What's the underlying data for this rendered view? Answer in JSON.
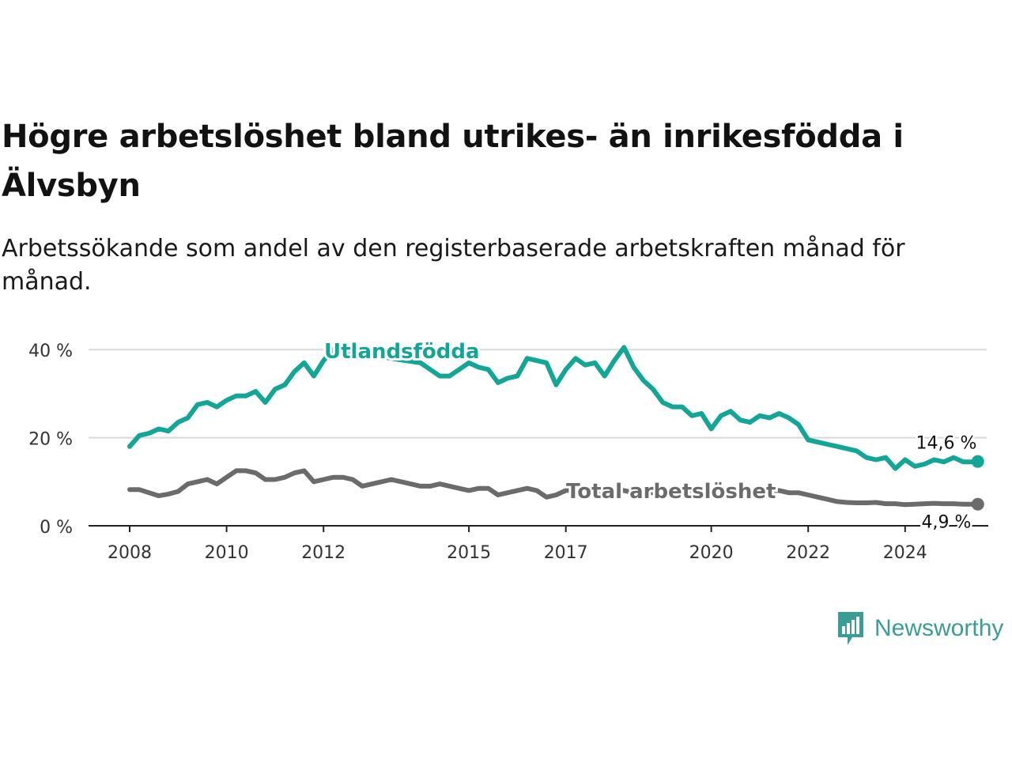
{
  "title": "Högre arbetslöshet bland utrikes- än inrikesfödda i Älvsbyn",
  "subtitle": "Arbetssökande som andel av den registerbaserade arbetskraften månad för månad.",
  "brand": {
    "name": "Newsworthy",
    "icon": "bar-chart-speech-bubble-icon",
    "color": "#3a9c94"
  },
  "chart_data": {
    "type": "line",
    "title": "Högre arbetslöshet bland utrikes- än inrikesfödda i Älvsbyn",
    "subtitle": "Arbetssökande som andel av den registerbaserade arbetskraften månad för månad.",
    "xlabel": "",
    "ylabel": "",
    "xlim": [
      2008,
      2025
    ],
    "ylim": [
      0,
      40
    ],
    "y_ticks": [
      0,
      20,
      40
    ],
    "y_tick_labels": [
      "0 %",
      "20 %",
      "40 %"
    ],
    "x_ticks": [
      2008,
      2010,
      2012,
      2015,
      2017,
      2020,
      2022,
      2024
    ],
    "x_tick_labels": [
      "2008",
      "2010",
      "2012",
      "2015",
      "2017",
      "2020",
      "2022",
      "2024"
    ],
    "grid": true,
    "series": [
      {
        "name": "Utlandsfödda",
        "color": "#13a596",
        "end_label": "14,6 %",
        "points": [
          [
            2008.0,
            18
          ],
          [
            2008.2,
            20.5
          ],
          [
            2008.4,
            21
          ],
          [
            2008.6,
            22
          ],
          [
            2008.8,
            21.5
          ],
          [
            2009.0,
            23.5
          ],
          [
            2009.2,
            24.5
          ],
          [
            2009.4,
            27.5
          ],
          [
            2009.6,
            28
          ],
          [
            2009.8,
            27
          ],
          [
            2010.0,
            28.5
          ],
          [
            2010.2,
            29.5
          ],
          [
            2010.4,
            29.5
          ],
          [
            2010.6,
            30.5
          ],
          [
            2010.8,
            28
          ],
          [
            2011.0,
            31
          ],
          [
            2011.2,
            32
          ],
          [
            2011.4,
            35
          ],
          [
            2011.6,
            37
          ],
          [
            2011.8,
            34
          ],
          [
            2012.0,
            37.5
          ],
          [
            2012.2,
            40
          ],
          [
            2014.0,
            37
          ],
          [
            2014.2,
            35.5
          ],
          [
            2014.4,
            34
          ],
          [
            2014.6,
            34
          ],
          [
            2014.8,
            35.5
          ],
          [
            2015.0,
            37
          ],
          [
            2015.2,
            36
          ],
          [
            2015.4,
            35.5
          ],
          [
            2015.6,
            32.5
          ],
          [
            2015.8,
            33.5
          ],
          [
            2016.0,
            34
          ],
          [
            2016.2,
            38
          ],
          [
            2016.4,
            37.5
          ],
          [
            2016.6,
            37
          ],
          [
            2016.8,
            32
          ],
          [
            2017.0,
            35.5
          ],
          [
            2017.2,
            38
          ],
          [
            2017.4,
            36.5
          ],
          [
            2017.6,
            37
          ],
          [
            2017.8,
            34
          ],
          [
            2018.0,
            37.5
          ],
          [
            2018.2,
            40.5
          ],
          [
            2018.4,
            36
          ],
          [
            2018.6,
            33
          ],
          [
            2018.8,
            31
          ],
          [
            2019.0,
            28
          ],
          [
            2019.2,
            27
          ],
          [
            2019.4,
            27
          ],
          [
            2019.6,
            25
          ],
          [
            2019.8,
            25.5
          ],
          [
            2020.0,
            22
          ],
          [
            2020.2,
            25
          ],
          [
            2020.4,
            26
          ],
          [
            2020.6,
            24
          ],
          [
            2020.8,
            23.5
          ],
          [
            2021.0,
            25
          ],
          [
            2021.2,
            24.5
          ],
          [
            2021.4,
            25.5
          ],
          [
            2021.6,
            24.5
          ],
          [
            2021.8,
            23
          ],
          [
            2022.0,
            19.5
          ],
          [
            2022.2,
            19
          ],
          [
            2022.4,
            18.5
          ],
          [
            2022.6,
            18
          ],
          [
            2022.8,
            17.5
          ],
          [
            2023.0,
            17
          ],
          [
            2023.2,
            15.5
          ],
          [
            2023.4,
            15
          ],
          [
            2023.6,
            15.5
          ],
          [
            2023.8,
            13
          ],
          [
            2024.0,
            15
          ],
          [
            2024.2,
            13.5
          ],
          [
            2024.4,
            14
          ],
          [
            2024.6,
            15
          ],
          [
            2024.8,
            14.5
          ],
          [
            2025.0,
            15.5
          ],
          [
            2025.2,
            14.5
          ],
          [
            2025.4,
            14.5
          ],
          [
            2025.5,
            14.6
          ]
        ]
      },
      {
        "name": "Total arbetslöshet",
        "color": "#6b6b6b",
        "end_label": "4,9 %",
        "points": [
          [
            2008.0,
            8.2
          ],
          [
            2008.2,
            8.2
          ],
          [
            2008.4,
            7.5
          ],
          [
            2008.6,
            6.8
          ],
          [
            2008.8,
            7.2
          ],
          [
            2009.0,
            7.8
          ],
          [
            2009.2,
            9.5
          ],
          [
            2009.4,
            10
          ],
          [
            2009.6,
            10.5
          ],
          [
            2009.8,
            9.5
          ],
          [
            2010.0,
            11
          ],
          [
            2010.2,
            12.5
          ],
          [
            2010.4,
            12.5
          ],
          [
            2010.6,
            12
          ],
          [
            2010.8,
            10.5
          ],
          [
            2011.0,
            10.5
          ],
          [
            2011.2,
            11
          ],
          [
            2011.4,
            12
          ],
          [
            2011.6,
            12.5
          ],
          [
            2011.8,
            10
          ],
          [
            2012.0,
            10.5
          ],
          [
            2012.2,
            11
          ],
          [
            2012.4,
            11
          ],
          [
            2012.6,
            10.5
          ],
          [
            2012.8,
            9
          ],
          [
            2013.0,
            9.5
          ],
          [
            2013.2,
            10
          ],
          [
            2013.4,
            10.5
          ],
          [
            2013.6,
            10
          ],
          [
            2013.8,
            9.5
          ],
          [
            2014.0,
            9
          ],
          [
            2014.2,
            9
          ],
          [
            2014.4,
            9.5
          ],
          [
            2014.6,
            9
          ],
          [
            2014.8,
            8.5
          ],
          [
            2015.0,
            8
          ],
          [
            2015.2,
            8.5
          ],
          [
            2015.4,
            8.5
          ],
          [
            2015.6,
            7
          ],
          [
            2015.8,
            7.5
          ],
          [
            2016.0,
            8
          ],
          [
            2016.2,
            8.5
          ],
          [
            2016.4,
            8
          ],
          [
            2016.6,
            6.5
          ],
          [
            2016.8,
            7
          ],
          [
            2017.0,
            8
          ],
          [
            2017.2,
            8
          ],
          [
            2017.4,
            7.5
          ],
          [
            2017.6,
            7.5
          ],
          [
            2017.8,
            7.5
          ],
          [
            2018.0,
            8
          ],
          [
            2018.2,
            8
          ],
          [
            2018.4,
            7.5
          ],
          [
            2018.6,
            7.5
          ],
          [
            2018.8,
            7.5
          ],
          [
            2019.0,
            7.5
          ],
          [
            2019.2,
            7.5
          ],
          [
            2019.4,
            7.5
          ],
          [
            2019.6,
            7.5
          ],
          [
            2019.8,
            7.5
          ],
          [
            2020.0,
            7.5
          ],
          [
            2020.2,
            8
          ],
          [
            2020.4,
            8
          ],
          [
            2020.6,
            8
          ],
          [
            2020.8,
            8
          ],
          [
            2021.0,
            8
          ],
          [
            2021.2,
            8
          ],
          [
            2021.4,
            8
          ],
          [
            2021.6,
            7.5
          ],
          [
            2021.8,
            7.5
          ],
          [
            2022.0,
            7
          ],
          [
            2022.2,
            6.5
          ],
          [
            2022.4,
            6
          ],
          [
            2022.6,
            5.5
          ],
          [
            2022.8,
            5.3
          ],
          [
            2023.0,
            5.2
          ],
          [
            2023.2,
            5.2
          ],
          [
            2023.4,
            5.3
          ],
          [
            2023.6,
            5
          ],
          [
            2023.8,
            5
          ],
          [
            2024.0,
            4.8
          ],
          [
            2024.2,
            4.9
          ],
          [
            2024.4,
            5
          ],
          [
            2024.6,
            5.1
          ],
          [
            2024.8,
            5
          ],
          [
            2025.0,
            5
          ],
          [
            2025.2,
            4.9
          ],
          [
            2025.4,
            4.9
          ],
          [
            2025.5,
            4.9
          ]
        ]
      }
    ]
  }
}
